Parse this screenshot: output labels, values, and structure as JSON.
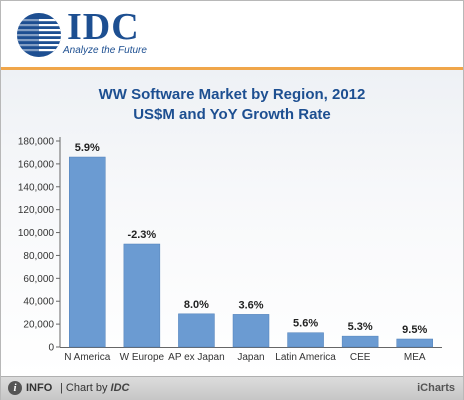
{
  "header": {
    "logo_text": "IDC",
    "tagline": "Analyze the Future"
  },
  "chart_data": {
    "type": "bar",
    "title_line1": "WW Software Market by Region, 2012",
    "title_line2": "US$M and YoY Growth Rate",
    "categories": [
      "N America",
      "W Europe",
      "AP ex Japan",
      "Japan",
      "Latin America",
      "CEE",
      "MEA"
    ],
    "values": [
      166000,
      90000,
      29000,
      28500,
      12500,
      9500,
      7000
    ],
    "data_labels": [
      "5.9%",
      "-2.3%",
      "8.0%",
      "3.6%",
      "5.6%",
      "5.3%",
      "9.5%"
    ],
    "yticks": [
      "0",
      "20,000",
      "40,000",
      "60,000",
      "80,000",
      "100,000",
      "120,000",
      "140,000",
      "160,000",
      "180,000"
    ],
    "ylim": [
      0,
      180000
    ],
    "grid": false,
    "bar_color": "#6b9bd2"
  },
  "footer": {
    "info_icon": "i",
    "info_label": "INFO",
    "chart_by": "| Chart by ",
    "brand": "IDC",
    "icharts": "iCharts"
  }
}
